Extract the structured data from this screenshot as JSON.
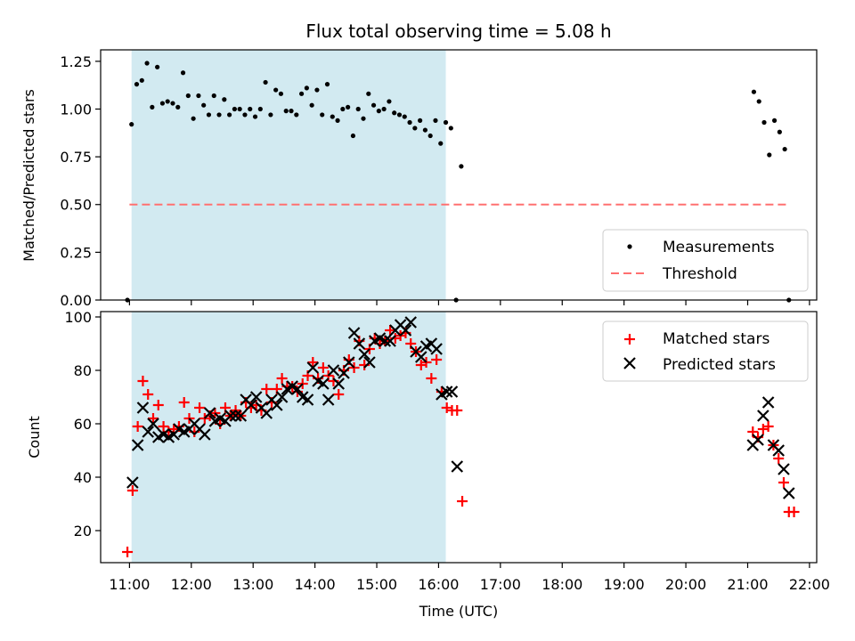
{
  "chart_data": [
    {
      "type": "scatter",
      "title": "Flux total observing time = 5.08 h",
      "xlabel": "",
      "ylabel": "Matched/Predicted stars",
      "ylim": [
        0,
        1.31
      ],
      "yticks": [
        "0.00",
        "0.25",
        "0.50",
        "0.75",
        "1.00",
        "1.25"
      ],
      "ytick_values": [
        0,
        0.25,
        0.5,
        0.75,
        1.0,
        1.25
      ],
      "xlim": [
        "10:32",
        "22:07"
      ],
      "legend": "lower-right",
      "shaded_interval": [
        "11:02",
        "16:07"
      ],
      "shade_color": "#add8e6",
      "threshold": {
        "name": "Threshold",
        "value": 0.5,
        "x": [
          "11:00",
          "21:40"
        ],
        "color": "#ff7070"
      },
      "series": [
        {
          "name": "Measurements",
          "color": "#000000",
          "points": [
            [
              "10:58",
              0.0
            ],
            [
              "11:02",
              0.92
            ],
            [
              "11:07",
              1.13
            ],
            [
              "11:12",
              1.15
            ],
            [
              "11:17",
              1.24
            ],
            [
              "11:22",
              1.01
            ],
            [
              "11:27",
              1.22
            ],
            [
              "11:32",
              1.03
            ],
            [
              "11:37",
              1.04
            ],
            [
              "11:42",
              1.03
            ],
            [
              "11:47",
              1.01
            ],
            [
              "11:52",
              1.19
            ],
            [
              "11:57",
              1.07
            ],
            [
              "12:02",
              0.95
            ],
            [
              "12:07",
              1.07
            ],
            [
              "12:12",
              1.02
            ],
            [
              "12:17",
              0.97
            ],
            [
              "12:22",
              1.07
            ],
            [
              "12:27",
              0.97
            ],
            [
              "12:32",
              1.05
            ],
            [
              "12:37",
              0.97
            ],
            [
              "12:42",
              1.0
            ],
            [
              "12:47",
              1.0
            ],
            [
              "12:52",
              0.97
            ],
            [
              "12:57",
              1.0
            ],
            [
              "13:02",
              0.96
            ],
            [
              "13:07",
              1.0
            ],
            [
              "13:12",
              1.14
            ],
            [
              "13:17",
              0.97
            ],
            [
              "13:22",
              1.1
            ],
            [
              "13:27",
              1.08
            ],
            [
              "13:32",
              0.99
            ],
            [
              "13:37",
              0.99
            ],
            [
              "13:42",
              0.97
            ],
            [
              "13:47",
              1.08
            ],
            [
              "13:52",
              1.11
            ],
            [
              "13:57",
              1.02
            ],
            [
              "14:02",
              1.1
            ],
            [
              "14:07",
              0.97
            ],
            [
              "14:12",
              1.13
            ],
            [
              "14:17",
              0.96
            ],
            [
              "14:22",
              0.94
            ],
            [
              "14:27",
              1.0
            ],
            [
              "14:32",
              1.01
            ],
            [
              "14:37",
              0.86
            ],
            [
              "14:42",
              1.0
            ],
            [
              "14:47",
              0.95
            ],
            [
              "14:52",
              1.08
            ],
            [
              "14:57",
              1.02
            ],
            [
              "15:02",
              0.99
            ],
            [
              "15:07",
              1.0
            ],
            [
              "15:12",
              1.04
            ],
            [
              "15:17",
              0.98
            ],
            [
              "15:22",
              0.97
            ],
            [
              "15:27",
              0.96
            ],
            [
              "15:32",
              0.93
            ],
            [
              "15:37",
              0.9
            ],
            [
              "15:42",
              0.94
            ],
            [
              "15:47",
              0.89
            ],
            [
              "15:52",
              0.86
            ],
            [
              "15:57",
              0.94
            ],
            [
              "16:02",
              0.82
            ],
            [
              "16:07",
              0.93
            ],
            [
              "16:12",
              0.9
            ],
            [
              "16:17",
              0.0
            ],
            [
              "16:22",
              0.7
            ],
            [
              "21:06",
              1.09
            ],
            [
              "21:11",
              1.04
            ],
            [
              "21:16",
              0.93
            ],
            [
              "21:21",
              0.76
            ],
            [
              "21:26",
              0.94
            ],
            [
              "21:31",
              0.88
            ],
            [
              "21:36",
              0.79
            ],
            [
              "21:40",
              0.0
            ]
          ]
        }
      ]
    },
    {
      "type": "scatter",
      "title": "",
      "xlabel": "Time (UTC)",
      "ylabel": "Count",
      "ylim": [
        8,
        102
      ],
      "yticks": [
        "20",
        "40",
        "60",
        "80",
        "100"
      ],
      "ytick_values": [
        20,
        40,
        60,
        80,
        100
      ],
      "xlim": [
        "10:32",
        "22:07"
      ],
      "xticks": [
        "11:00",
        "12:00",
        "13:00",
        "14:00",
        "15:00",
        "16:00",
        "17:00",
        "18:00",
        "19:00",
        "20:00",
        "21:00",
        "22:00"
      ],
      "legend": "upper-right",
      "shaded_interval": [
        "11:02",
        "16:07"
      ],
      "series": [
        {
          "name": "Matched stars",
          "marker": "plus",
          "color": "#ff0000",
          "points": [
            [
              "10:58",
              12
            ],
            [
              "11:03",
              35
            ],
            [
              "11:08",
              59
            ],
            [
              "11:13",
              76
            ],
            [
              "11:18",
              71
            ],
            [
              "11:23",
              62
            ],
            [
              "11:28",
              67
            ],
            [
              "11:33",
              59
            ],
            [
              "11:38",
              57
            ],
            [
              "11:43",
              58
            ],
            [
              "11:48",
              59
            ],
            [
              "11:53",
              68
            ],
            [
              "11:58",
              62
            ],
            [
              "12:03",
              57
            ],
            [
              "12:08",
              66
            ],
            [
              "12:13",
              62
            ],
            [
              "12:18",
              63
            ],
            [
              "12:23",
              64
            ],
            [
              "12:28",
              60
            ],
            [
              "12:33",
              66
            ],
            [
              "12:38",
              63
            ],
            [
              "12:43",
              65
            ],
            [
              "12:48",
              63
            ],
            [
              "12:53",
              68
            ],
            [
              "12:58",
              66
            ],
            [
              "13:03",
              67
            ],
            [
              "13:08",
              65
            ],
            [
              "13:13",
              73
            ],
            [
              "13:18",
              68
            ],
            [
              "13:23",
              73
            ],
            [
              "13:28",
              77
            ],
            [
              "13:33",
              74
            ],
            [
              "13:38",
              74
            ],
            [
              "13:43",
              72
            ],
            [
              "13:48",
              75
            ],
            [
              "13:53",
              78
            ],
            [
              "13:58",
              83
            ],
            [
              "14:03",
              77
            ],
            [
              "14:08",
              81
            ],
            [
              "14:13",
              78
            ],
            [
              "14:18",
              76
            ],
            [
              "14:23",
              71
            ],
            [
              "14:28",
              80
            ],
            [
              "14:33",
              84
            ],
            [
              "14:38",
              81
            ],
            [
              "14:43",
              91
            ],
            [
              "14:48",
              82
            ],
            [
              "14:53",
              88
            ],
            [
              "14:58",
              92
            ],
            [
              "15:03",
              90
            ],
            [
              "15:08",
              91
            ],
            [
              "15:13",
              95
            ],
            [
              "15:18",
              92
            ],
            [
              "15:23",
              93
            ],
            [
              "15:28",
              94
            ],
            [
              "15:33",
              90
            ],
            [
              "15:38",
              87
            ],
            [
              "15:43",
              82
            ],
            [
              "15:48",
              83
            ],
            [
              "15:53",
              77
            ],
            [
              "15:58",
              84
            ],
            [
              "16:03",
              72
            ],
            [
              "16:08",
              66
            ],
            [
              "16:13",
              65
            ],
            [
              "16:18",
              65
            ],
            [
              "16:23",
              31
            ],
            [
              "21:05",
              57
            ],
            [
              "21:10",
              55
            ],
            [
              "21:15",
              58
            ],
            [
              "21:20",
              59
            ],
            [
              "21:25",
              52
            ],
            [
              "21:30",
              47
            ],
            [
              "21:35",
              38
            ],
            [
              "21:40",
              27
            ],
            [
              "21:45",
              27
            ]
          ]
        },
        {
          "name": "Predicted stars",
          "marker": "x",
          "color": "#000000",
          "points": [
            [
              "11:03",
              38
            ],
            [
              "11:08",
              52
            ],
            [
              "11:13",
              66
            ],
            [
              "11:18",
              57
            ],
            [
              "11:23",
              60
            ],
            [
              "11:28",
              55
            ],
            [
              "11:33",
              56
            ],
            [
              "11:38",
              55
            ],
            [
              "11:43",
              56
            ],
            [
              "11:48",
              58
            ],
            [
              "11:53",
              57
            ],
            [
              "11:58",
              58
            ],
            [
              "12:03",
              60
            ],
            [
              "12:08",
              58
            ],
            [
              "12:13",
              56
            ],
            [
              "12:18",
              64
            ],
            [
              "12:23",
              61
            ],
            [
              "12:28",
              62
            ],
            [
              "12:33",
              61
            ],
            [
              "12:38",
              63
            ],
            [
              "12:43",
              63
            ],
            [
              "12:48",
              63
            ],
            [
              "12:53",
              69
            ],
            [
              "12:58",
              67
            ],
            [
              "13:03",
              70
            ],
            [
              "13:08",
              66
            ],
            [
              "13:13",
              64
            ],
            [
              "13:18",
              69
            ],
            [
              "13:23",
              67
            ],
            [
              "13:28",
              70
            ],
            [
              "13:33",
              73
            ],
            [
              "13:38",
              74
            ],
            [
              "13:43",
              73
            ],
            [
              "13:48",
              70
            ],
            [
              "13:53",
              69
            ],
            [
              "13:58",
              81
            ],
            [
              "14:03",
              76
            ],
            [
              "14:08",
              75
            ],
            [
              "14:13",
              69
            ],
            [
              "14:18",
              80
            ],
            [
              "14:23",
              75
            ],
            [
              "14:28",
              79
            ],
            [
              "14:33",
              83
            ],
            [
              "14:38",
              94
            ],
            [
              "14:43",
              90
            ],
            [
              "14:48",
              86
            ],
            [
              "14:53",
              83
            ],
            [
              "14:58",
              91
            ],
            [
              "15:03",
              92
            ],
            [
              "15:08",
              91
            ],
            [
              "15:13",
              91
            ],
            [
              "15:18",
              95
            ],
            [
              "15:23",
              97
            ],
            [
              "15:28",
              95
            ],
            [
              "15:33",
              98
            ],
            [
              "15:38",
              87
            ],
            [
              "15:43",
              85
            ],
            [
              "15:48",
              89
            ],
            [
              "15:53",
              90
            ],
            [
              "15:58",
              88
            ],
            [
              "16:03",
              71
            ],
            [
              "16:08",
              72
            ],
            [
              "16:13",
              72
            ],
            [
              "16:18",
              44
            ],
            [
              "21:05",
              52
            ],
            [
              "21:10",
              54
            ],
            [
              "21:15",
              63
            ],
            [
              "21:20",
              68
            ],
            [
              "21:25",
              52
            ],
            [
              "21:30",
              50
            ],
            [
              "21:35",
              43
            ],
            [
              "21:40",
              34
            ]
          ]
        }
      ]
    }
  ]
}
